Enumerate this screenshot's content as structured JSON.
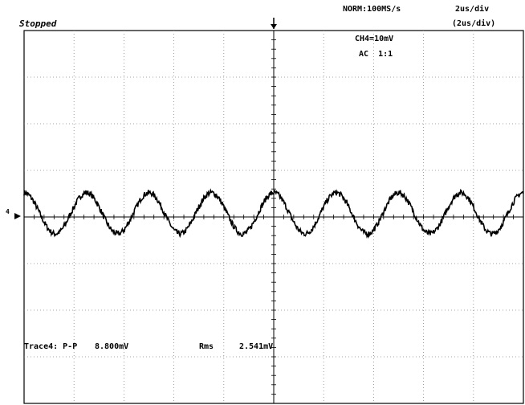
{
  "status": "Stopped",
  "sample_rate": "NORM:100MS/s",
  "time_div": "2us/div",
  "time_div_paren": "(2us/div)",
  "channel_scale": "CH4=10mV",
  "coupling": "AC  1:1",
  "trace_label": "Trace4: P-P",
  "pp_value": "8.800mV",
  "rms_label": "Rms",
  "rms_value": "2.541mV",
  "trigger_marker": "T",
  "channel_marker": "4",
  "chart_data": {
    "type": "line",
    "title": "",
    "xlabel": "",
    "ylabel": "",
    "x_unit": "us",
    "y_unit": "mV",
    "xlim": [
      -10,
      10
    ],
    "ylim": [
      -40,
      40
    ],
    "grid": true,
    "x_divisions": 10,
    "y_divisions": 8,
    "series": [
      {
        "amplitude_mV": 4.4,
        "frequency_MHz": 0.4,
        "offset_mV": 0.8,
        "noise": true
      }
    ]
  }
}
